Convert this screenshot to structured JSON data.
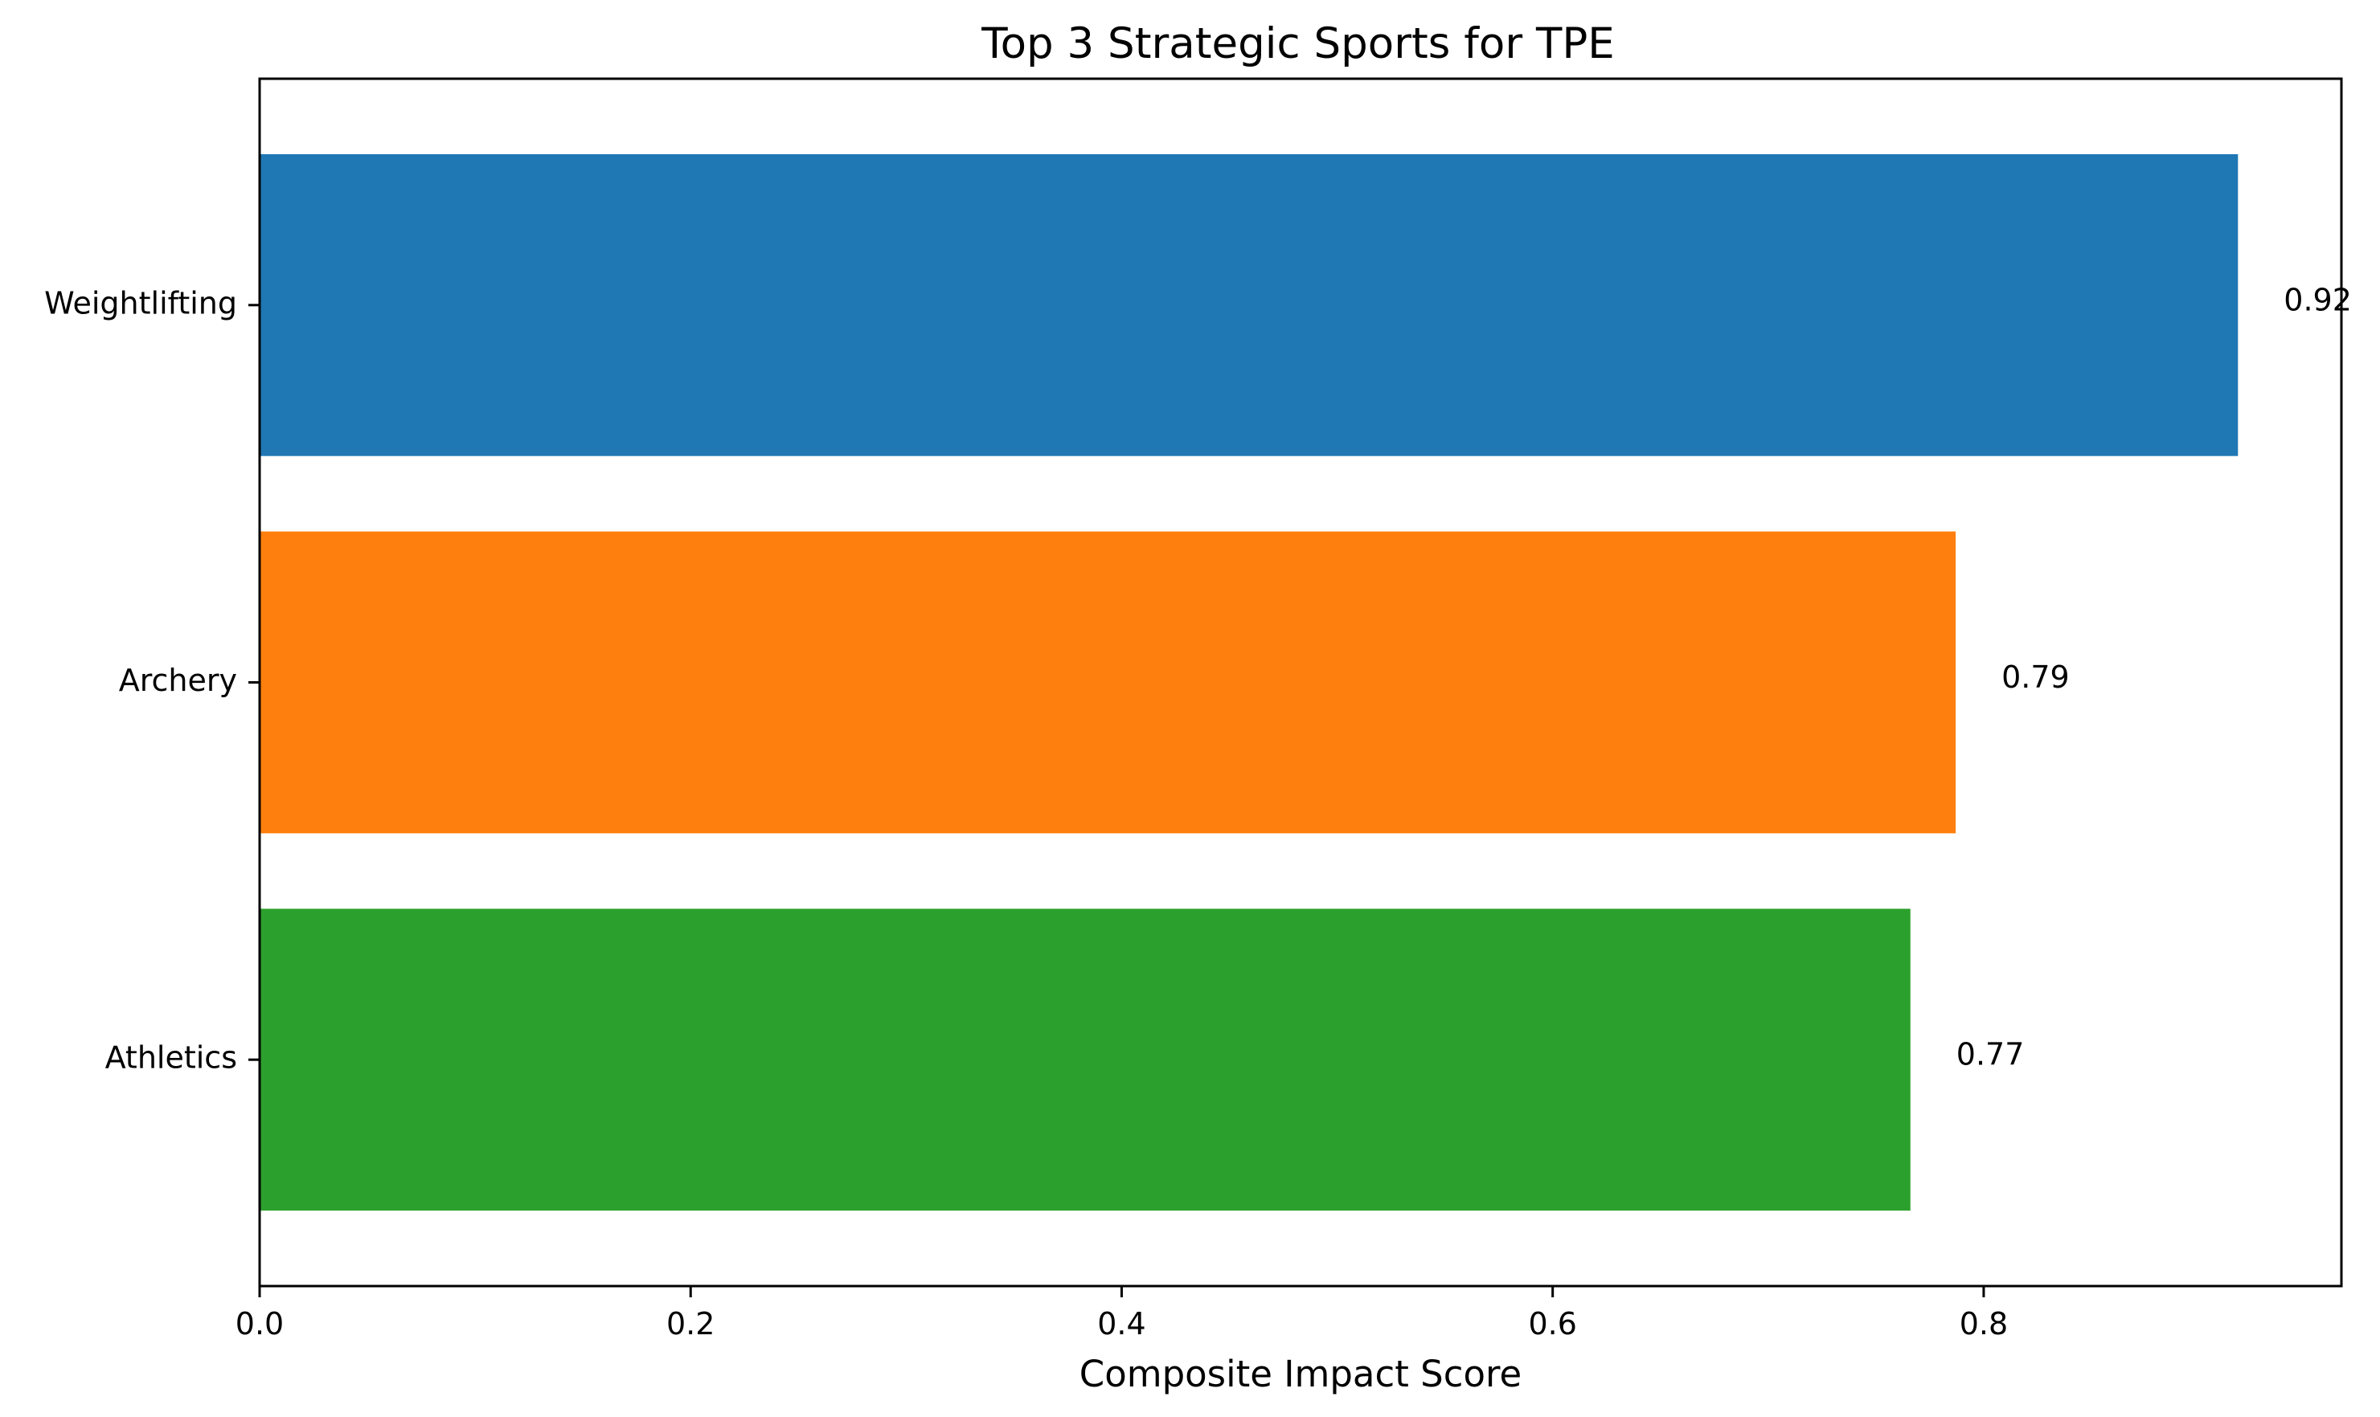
{
  "chart_data": {
    "type": "bar",
    "orientation": "horizontal",
    "title": "Top 3 Strategic Sports for TPE",
    "xlabel": "Composite Impact Score",
    "ylabel": "",
    "xlim": [
      0,
      0.966
    ],
    "xticks": [
      0.0,
      0.2,
      0.4,
      0.6,
      0.8
    ],
    "xtick_labels": [
      "0.0",
      "0.2",
      "0.4",
      "0.6",
      "0.8"
    ],
    "grid": false,
    "categories": [
      "Weightlifting",
      "Archery",
      "Athletics"
    ],
    "values": [
      0.918,
      0.787,
      0.766
    ],
    "value_labels": [
      "0.92",
      "0.79",
      "0.77"
    ],
    "colors": [
      "#1f77b4",
      "#ff7f0e",
      "#2ca02c"
    ]
  }
}
